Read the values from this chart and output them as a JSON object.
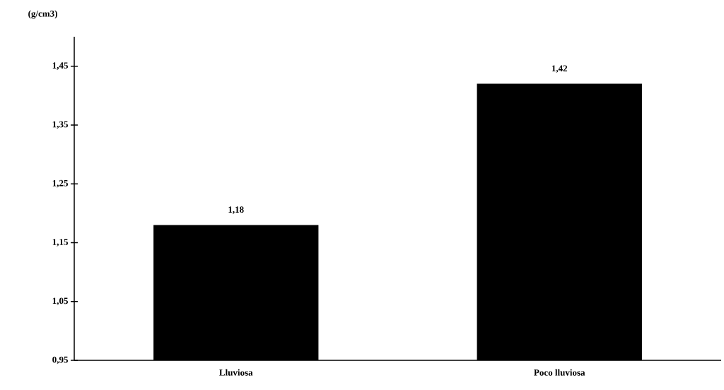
{
  "chart_data": {
    "type": "bar",
    "ylabel": "(g/cm3)",
    "categories": [
      "Lluviosa",
      "Poco lluviosa"
    ],
    "values": [
      1.18,
      1.42
    ],
    "value_labels": [
      "1,18",
      "1,42"
    ],
    "color": "#000000",
    "ylim": [
      0.95,
      1.5
    ],
    "yticks": [
      {
        "value": 0.95,
        "label": "0,95"
      },
      {
        "value": 1.05,
        "label": "1,05"
      },
      {
        "value": 1.15,
        "label": "1,15"
      },
      {
        "value": 1.25,
        "label": "1,25"
      },
      {
        "value": 1.35,
        "label": "1,35"
      },
      {
        "value": 1.45,
        "label": "1,45"
      }
    ]
  }
}
